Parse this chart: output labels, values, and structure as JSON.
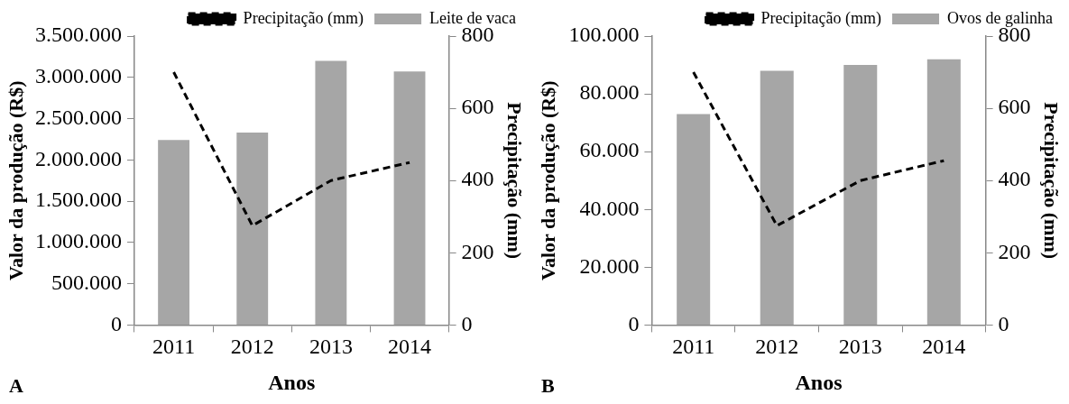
{
  "chart_data": [
    {
      "type": "bar",
      "categories": [
        "2011",
        "2012",
        "2013",
        "2014"
      ],
      "series": [
        {
          "name": "Leite de vaca",
          "color": "#a6a6a6",
          "values": [
            2240000,
            2330000,
            3200000,
            3070000
          ]
        },
        {
          "name": "Precipitação (mm)",
          "type": "line",
          "axis": "y2",
          "color": "#000000",
          "line_style": "dashed",
          "marker": "none",
          "values": [
            700,
            275,
            400,
            450
          ]
        }
      ],
      "xlabel": "Anos",
      "ylabel": "Valor da produção (R$)",
      "y2label": "Precipitação (mm)",
      "ylim": [
        0,
        3500000
      ],
      "yticks": [
        0,
        {
          "value": 500000,
          "label": "500.000"
        },
        {
          "value": 1000000,
          "label": "1.000.000"
        },
        {
          "value": 1500000,
          "label": "1.500.000"
        },
        {
          "value": 2000000,
          "label": "2.000.000"
        },
        {
          "value": 2500000,
          "label": "2.500.000"
        },
        {
          "value": 3000000,
          "label": "3.000.000"
        },
        {
          "value": 3500000,
          "label": "3.500.000"
        }
      ],
      "y2lim": [
        0,
        800
      ],
      "y2ticks": [
        0,
        200,
        400,
        600,
        800
      ],
      "legend": "top",
      "grid": false,
      "annotations": [
        "A"
      ]
    },
    {
      "type": "bar",
      "categories": [
        "2011",
        "2012",
        "2013",
        "2014"
      ],
      "series": [
        {
          "name": "Ovos de galinha",
          "color": "#a6a6a6",
          "values": [
            73000,
            88000,
            90000,
            92000
          ]
        },
        {
          "name": "Precipitação (mm)",
          "type": "line",
          "axis": "y2",
          "color": "#000000",
          "line_style": "dashed",
          "marker": "none",
          "values": [
            700,
            275,
            400,
            455
          ]
        }
      ],
      "xlabel": "Anos",
      "ylabel": "Valor da produção (R$)",
      "y2label": "Precipitação (mm)",
      "ylim": [
        0,
        100000
      ],
      "yticks": [
        0,
        {
          "value": 20000,
          "label": "20.000"
        },
        {
          "value": 40000,
          "label": "40.000"
        },
        {
          "value": 60000,
          "label": "60.000"
        },
        {
          "value": 80000,
          "label": "80.000"
        },
        {
          "value": 100000,
          "label": "100.000"
        }
      ],
      "y2lim": [
        0,
        800
      ],
      "y2ticks": [
        0,
        200,
        400,
        600,
        800
      ],
      "legend": "top",
      "grid": false,
      "annotations": [
        "B"
      ]
    }
  ]
}
